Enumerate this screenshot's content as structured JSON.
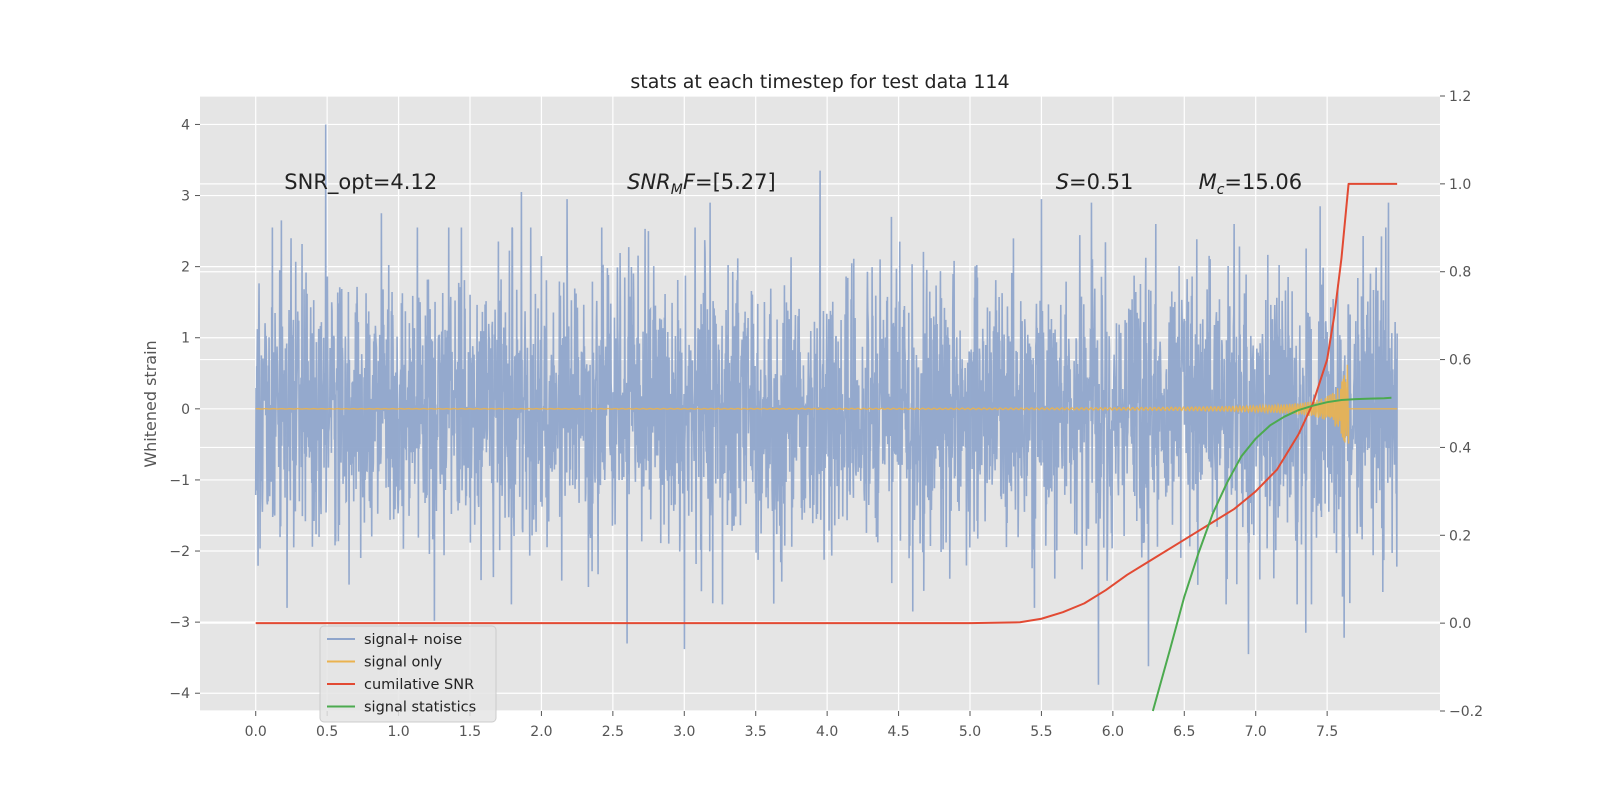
{
  "chart_data": {
    "type": "line",
    "title": "stats at each timestep for test data 114",
    "xlabel": "",
    "ylabel": "Whitened strain",
    "y2label": "",
    "xlim": [
      -0.39,
      8.29
    ],
    "ylim": [
      -4.25,
      4.4
    ],
    "y2lim": [
      -0.2,
      1.2
    ],
    "xticks": [
      "0.0",
      "0.5",
      "1.0",
      "1.5",
      "2.0",
      "2.5",
      "3.0",
      "3.5",
      "4.0",
      "4.5",
      "5.0",
      "5.5",
      "6.0",
      "6.5",
      "7.0",
      "7.5"
    ],
    "yticks": [
      "−4",
      "−3",
      "−2",
      "−1",
      "0",
      "1",
      "2",
      "3",
      "4"
    ],
    "y2ticks": [
      "−0.2",
      "0.0",
      "0.2",
      "0.4",
      "0.6",
      "0.8",
      "1.0",
      "1.2"
    ],
    "grid": true,
    "legend_position": "lower-left",
    "annotations": [
      {
        "id": "snr_opt",
        "prefix": "SNR_opt=",
        "value": "4.12",
        "x": 0.2,
        "y": 3.19
      },
      {
        "id": "snr_mf",
        "main": "SNR",
        "sub": "M",
        "tail": "F",
        "value": "=[5.27]",
        "x": 2.6,
        "y": 3.19
      },
      {
        "id": "s_stat",
        "main": "S",
        "value": "=0.51",
        "x": 5.6,
        "y": 3.19
      },
      {
        "id": "mc",
        "main": "M",
        "sub": "c",
        "value": "=15.06",
        "x": 6.6,
        "y": 3.19
      }
    ],
    "series": [
      {
        "name": "signal+ noise",
        "color": "#8fa5cb",
        "axis": "left",
        "style": "noise",
        "x_range": [
          0.0,
          7.99
        ],
        "approx_std": 0.95,
        "seed": 114,
        "peak_points": [
          [
            0.49,
            4.0
          ],
          [
            0.18,
            2.65
          ],
          [
            0.88,
            2.75
          ],
          [
            1.35,
            2.55
          ],
          [
            1.86,
            3.05
          ],
          [
            2.18,
            2.95
          ],
          [
            2.75,
            2.5
          ],
          [
            3.18,
            2.9
          ],
          [
            3.95,
            3.35
          ],
          [
            4.45,
            2.7
          ],
          [
            5.5,
            2.95
          ],
          [
            5.85,
            2.9
          ],
          [
            6.3,
            2.6
          ],
          [
            6.85,
            2.6
          ],
          [
            7.45,
            2.85
          ],
          [
            7.93,
            2.9
          ],
          [
            0.22,
            -2.8
          ],
          [
            1.25,
            -2.98
          ],
          [
            2.6,
            -3.3
          ],
          [
            3.0,
            -3.38
          ],
          [
            4.6,
            -2.85
          ],
          [
            5.45,
            -2.8
          ],
          [
            5.9,
            -3.88
          ],
          [
            6.25,
            -3.62
          ],
          [
            6.95,
            -3.45
          ],
          [
            7.35,
            -3.15
          ],
          [
            7.62,
            -3.22
          ]
        ]
      },
      {
        "name": "signal only",
        "color": "#eab24f",
        "axis": "left",
        "style": "chirp",
        "x_range": [
          0.0,
          7.65
        ],
        "peak_amplitude": 0.75,
        "merger_time": 7.65,
        "tail_level": 0.0,
        "tail_end": 7.99
      },
      {
        "name": "cumilative SNR",
        "color": "#e24a33",
        "axis": "right",
        "style": "line",
        "x": [
          0.0,
          1.0,
          2.0,
          3.0,
          4.0,
          5.0,
          5.35,
          5.5,
          5.65,
          5.8,
          5.95,
          6.1,
          6.3,
          6.5,
          6.7,
          6.85,
          7.0,
          7.15,
          7.3,
          7.4,
          7.5,
          7.55,
          7.6,
          7.65,
          7.7,
          7.8,
          7.99
        ],
        "y": [
          0.0,
          0.0,
          0.0,
          0.0,
          0.0,
          0.0,
          0.002,
          0.01,
          0.025,
          0.045,
          0.075,
          0.11,
          0.15,
          0.19,
          0.23,
          0.26,
          0.3,
          0.35,
          0.43,
          0.5,
          0.6,
          0.7,
          0.83,
          1.0,
          1.0,
          1.0,
          1.0
        ]
      },
      {
        "name": "signal statistics",
        "color": "#4caa4f",
        "axis": "right",
        "style": "line",
        "x": [
          6.28,
          6.4,
          6.5,
          6.6,
          6.7,
          6.8,
          6.9,
          7.0,
          7.1,
          7.2,
          7.3,
          7.4,
          7.5,
          7.6,
          7.7,
          7.8,
          7.9,
          7.95
        ],
        "y": [
          -0.2,
          -0.06,
          0.06,
          0.16,
          0.25,
          0.32,
          0.38,
          0.42,
          0.45,
          0.47,
          0.485,
          0.495,
          0.503,
          0.508,
          0.51,
          0.511,
          0.512,
          0.513
        ]
      }
    ]
  }
}
